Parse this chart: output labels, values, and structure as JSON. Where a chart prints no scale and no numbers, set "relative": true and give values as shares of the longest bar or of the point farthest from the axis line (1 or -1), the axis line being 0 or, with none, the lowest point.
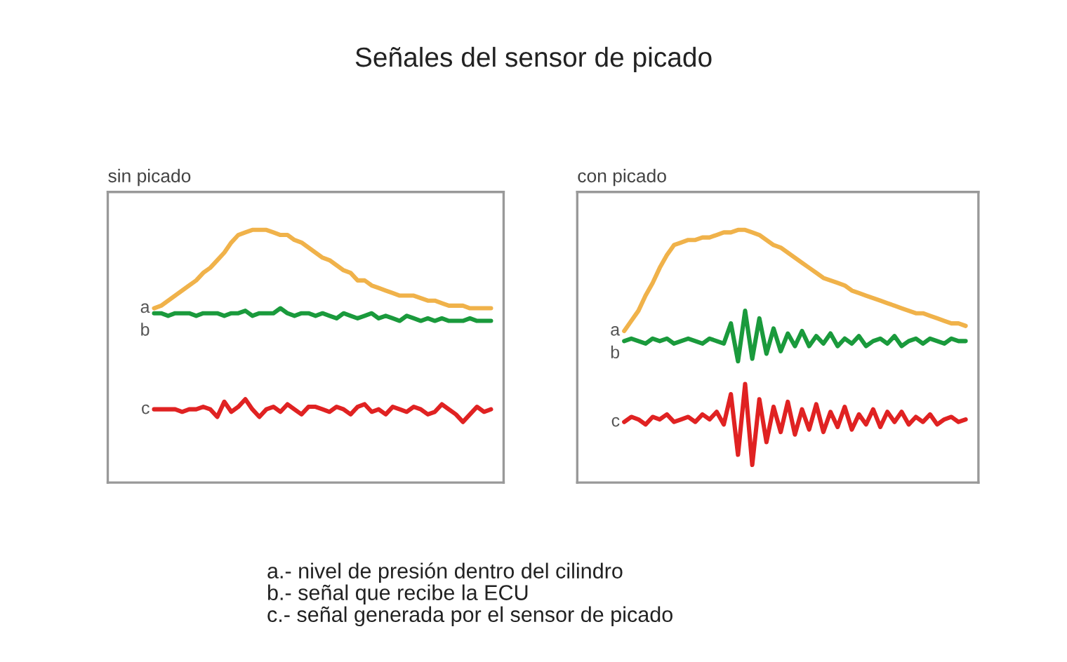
{
  "chart_data": [
    {
      "type": "line",
      "title": "sin picado",
      "relative": true,
      "categories": [
        null,
        null,
        null,
        null,
        null,
        null,
        null,
        null,
        null,
        null,
        null,
        null,
        null,
        null,
        null,
        null,
        null,
        null,
        null,
        null,
        null,
        null,
        null,
        null,
        null,
        null,
        null,
        null,
        null,
        null,
        null,
        null,
        null,
        null,
        null,
        null,
        null,
        null,
        null,
        null,
        null,
        null,
        null,
        null,
        null,
        null,
        null,
        null,
        null
      ],
      "series": [
        {
          "name": "a",
          "color": "#f0b24a",
          "line_style": "solid",
          "values": [
            0.69,
            0.7,
            0.72,
            0.74,
            0.76,
            0.78,
            0.8,
            0.83,
            0.85,
            0.88,
            0.91,
            0.95,
            0.98,
            0.99,
            1.0,
            1.0,
            1.0,
            0.99,
            0.98,
            0.98,
            0.96,
            0.95,
            0.93,
            0.91,
            0.89,
            0.88,
            0.86,
            0.84,
            0.83,
            0.8,
            0.8,
            0.78,
            0.77,
            0.76,
            0.75,
            0.74,
            0.74,
            0.74,
            0.73,
            0.72,
            0.72,
            0.71,
            0.7,
            0.7,
            0.7,
            0.69,
            0.69,
            0.69,
            0.69
          ]
        },
        {
          "name": "b",
          "color": "#1a9a3c",
          "line_style": "solid",
          "values": [
            0.67,
            0.67,
            0.66,
            0.67,
            0.67,
            0.67,
            0.66,
            0.67,
            0.67,
            0.67,
            0.66,
            0.67,
            0.67,
            0.68,
            0.66,
            0.67,
            0.67,
            0.67,
            0.69,
            0.67,
            0.66,
            0.67,
            0.67,
            0.66,
            0.67,
            0.66,
            0.65,
            0.67,
            0.66,
            0.65,
            0.66,
            0.67,
            0.65,
            0.66,
            0.65,
            0.64,
            0.66,
            0.65,
            0.64,
            0.65,
            0.64,
            0.65,
            0.64,
            0.64,
            0.64,
            0.65,
            0.64,
            0.64,
            0.64
          ]
        },
        {
          "name": "c",
          "color": "#e02222",
          "line_style": "solid",
          "values": [
            0.29,
            0.29,
            0.29,
            0.29,
            0.28,
            0.29,
            0.29,
            0.3,
            0.29,
            0.26,
            0.32,
            0.28,
            0.3,
            0.33,
            0.29,
            0.26,
            0.29,
            0.3,
            0.28,
            0.31,
            0.29,
            0.27,
            0.3,
            0.3,
            0.29,
            0.28,
            0.3,
            0.29,
            0.27,
            0.3,
            0.31,
            0.28,
            0.29,
            0.27,
            0.3,
            0.29,
            0.28,
            0.3,
            0.29,
            0.27,
            0.28,
            0.31,
            0.29,
            0.27,
            0.24,
            0.27,
            0.3,
            0.28,
            0.29
          ]
        }
      ]
    },
    {
      "type": "line",
      "title": "con picado",
      "relative": true,
      "categories": [
        null,
        null,
        null,
        null,
        null,
        null,
        null,
        null,
        null,
        null,
        null,
        null,
        null,
        null,
        null,
        null,
        null,
        null,
        null,
        null,
        null,
        null,
        null,
        null,
        null,
        null,
        null,
        null,
        null,
        null,
        null,
        null,
        null,
        null,
        null,
        null,
        null,
        null,
        null,
        null,
        null,
        null,
        null,
        null,
        null,
        null,
        null,
        null,
        null
      ],
      "series": [
        {
          "name": "a",
          "color": "#f0b24a",
          "line_style": "solid",
          "values": [
            0.6,
            0.64,
            0.68,
            0.74,
            0.79,
            0.85,
            0.9,
            0.94,
            0.95,
            0.96,
            0.96,
            0.97,
            0.97,
            0.98,
            0.99,
            0.99,
            1.0,
            1.0,
            0.99,
            0.98,
            0.96,
            0.94,
            0.93,
            0.91,
            0.89,
            0.87,
            0.85,
            0.83,
            0.81,
            0.8,
            0.79,
            0.78,
            0.76,
            0.75,
            0.74,
            0.73,
            0.72,
            0.71,
            0.7,
            0.69,
            0.68,
            0.67,
            0.67,
            0.66,
            0.65,
            0.64,
            0.63,
            0.63,
            0.62
          ]
        },
        {
          "name": "b",
          "color": "#1a9a3c",
          "line_style": "solid",
          "values": [
            0.56,
            0.57,
            0.56,
            0.55,
            0.57,
            0.56,
            0.57,
            0.55,
            0.56,
            0.57,
            0.56,
            0.55,
            0.57,
            0.56,
            0.55,
            0.63,
            0.48,
            0.68,
            0.49,
            0.65,
            0.51,
            0.61,
            0.52,
            0.59,
            0.54,
            0.6,
            0.54,
            0.58,
            0.55,
            0.59,
            0.54,
            0.57,
            0.55,
            0.58,
            0.54,
            0.56,
            0.57,
            0.55,
            0.58,
            0.54,
            0.56,
            0.57,
            0.55,
            0.57,
            0.56,
            0.55,
            0.57,
            0.56,
            0.56
          ]
        },
        {
          "name": "c",
          "color": "#e02222",
          "line_style": "solid",
          "values": [
            0.24,
            0.26,
            0.25,
            0.23,
            0.26,
            0.25,
            0.27,
            0.24,
            0.25,
            0.26,
            0.24,
            0.27,
            0.25,
            0.28,
            0.23,
            0.35,
            0.11,
            0.39,
            0.07,
            0.33,
            0.16,
            0.3,
            0.2,
            0.32,
            0.19,
            0.29,
            0.21,
            0.31,
            0.2,
            0.28,
            0.22,
            0.3,
            0.21,
            0.27,
            0.23,
            0.29,
            0.22,
            0.28,
            0.24,
            0.28,
            0.23,
            0.26,
            0.24,
            0.27,
            0.23,
            0.25,
            0.26,
            0.24,
            0.25
          ]
        }
      ]
    },
    {
      "type": "other",
      "title": "Señales del sensor de picado",
      "annotations": [
        "a.- nivel de presión dentro del cilindro",
        "b.- señal que recibe la ECU",
        "c.- señal generada por el sensor de picado"
      ]
    }
  ]
}
